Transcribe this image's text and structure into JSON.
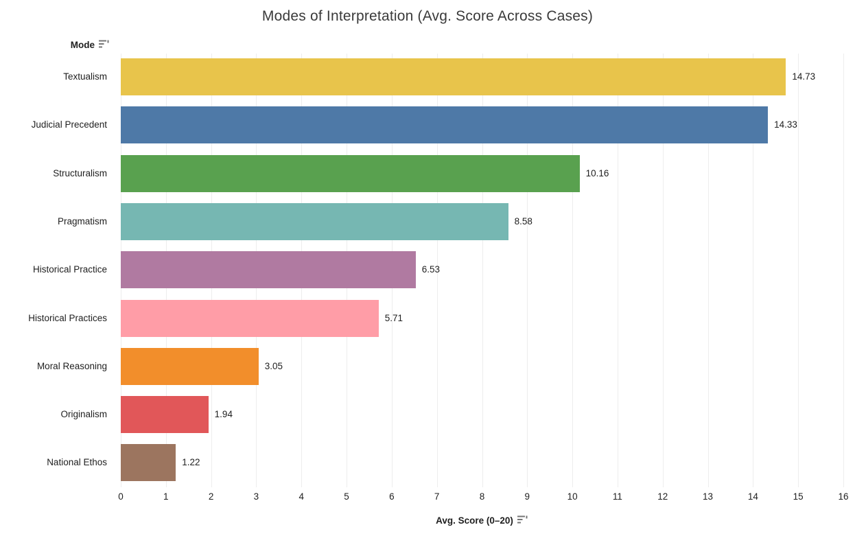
{
  "title": "Modes of Interpretation (Avg. Score Across Cases)",
  "row_header": {
    "label": "Mode",
    "icon": "sort-descending-icon"
  },
  "x_axis": {
    "label": "Avg. Score (0–20)",
    "icon": "sort-descending-icon",
    "min": 0,
    "max": 16,
    "tick_labels": [
      "0",
      "1",
      "2",
      "3",
      "4",
      "5",
      "6",
      "7",
      "8",
      "9",
      "10",
      "11",
      "12",
      "13",
      "14",
      "15",
      "16"
    ]
  },
  "chart_data": {
    "type": "bar",
    "orientation": "horizontal",
    "title": "Modes of Interpretation (Avg. Score Across Cases)",
    "xlabel": "Avg. Score (0–20)",
    "ylabel": "Mode",
    "xlim": [
      0,
      16
    ],
    "grid": true,
    "legend": false,
    "categories": [
      "Textualism",
      "Judicial Precedent",
      "Structuralism",
      "Pragmatism",
      "Historical Practice",
      "Historical Practices",
      "Moral Reasoning",
      "Originalism",
      "National Ethos"
    ],
    "values": [
      14.73,
      14.33,
      10.16,
      8.58,
      6.53,
      5.71,
      3.05,
      1.94,
      1.22
    ],
    "value_labels": [
      "14.73",
      "14.33",
      "10.16",
      "8.58",
      "6.53",
      "5.71",
      "3.05",
      "1.94",
      "1.22"
    ],
    "bar_colors": [
      "#E8C44B",
      "#4E79A7",
      "#59A14F",
      "#76B7B2",
      "#B07AA1",
      "#FF9DA7",
      "#F28E2B",
      "#E15759",
      "#9C755F"
    ]
  },
  "colors": {
    "background": "#ffffff",
    "gridline": "#ededed",
    "text": "#1e1e1e",
    "title_text": "#3a3a3a",
    "icon": "#757575"
  }
}
